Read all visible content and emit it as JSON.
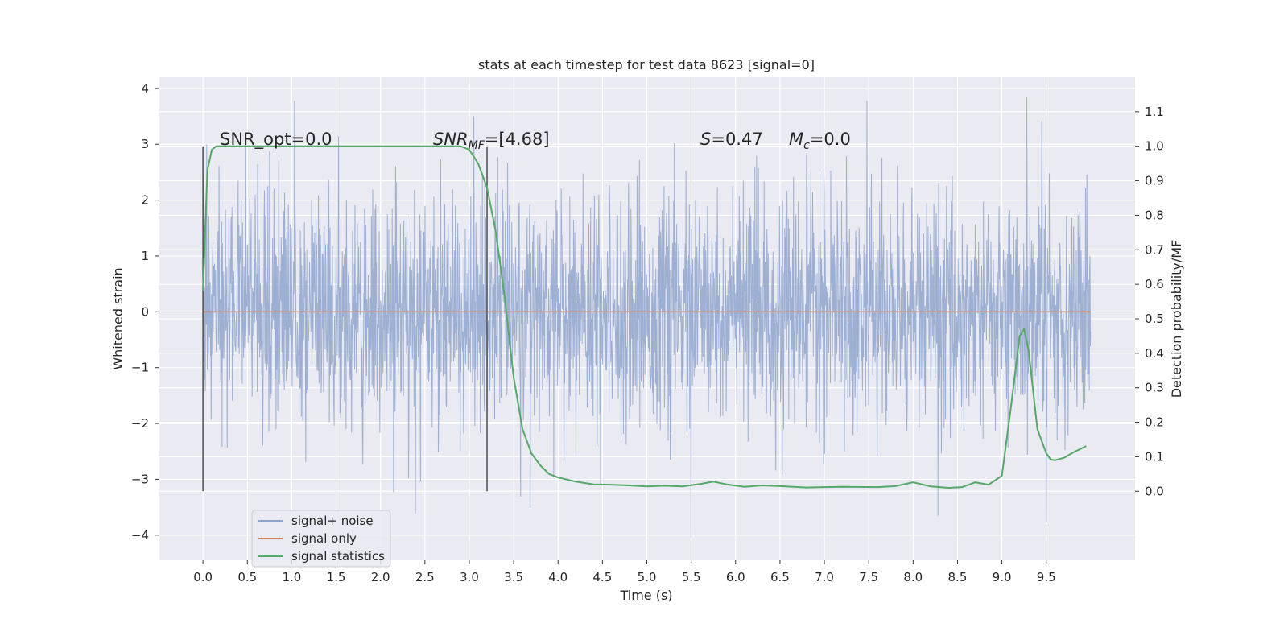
{
  "chart_data": {
    "type": "line",
    "title": "stats at each timestep for test data 8623 [signal=0]",
    "xlabel": "Time (s)",
    "ylabel": "Whitened strain",
    "y2label": "Detection probability/MF",
    "xlim": [
      -0.5,
      10.5
    ],
    "ylim": [
      -4.45,
      4.2
    ],
    "y2lim": [
      -0.2,
      1.2
    ],
    "xticks": [
      "0.0",
      "0.5",
      "1.0",
      "1.5",
      "2.0",
      "2.5",
      "3.0",
      "3.5",
      "4.0",
      "4.5",
      "5.0",
      "5.5",
      "6.0",
      "6.5",
      "7.0",
      "7.5",
      "8.0",
      "8.5",
      "9.0",
      "9.5"
    ],
    "yticks": [
      "4",
      "3",
      "2",
      "1",
      "0",
      "−1",
      "−2",
      "−3",
      "−4"
    ],
    "y2ticks": [
      "1.1",
      "1.0",
      "0.9",
      "0.8",
      "0.7",
      "0.6",
      "0.5",
      "0.4",
      "0.3",
      "0.2",
      "0.1",
      "0.0"
    ],
    "grid": true,
    "legend_position": "lower-left",
    "colors": {
      "background": "#eaeaf2",
      "noise": "#8fa4cd",
      "signal": "#dd8452",
      "statistic": "#55a868",
      "marker": "#4d4d4d"
    },
    "annotations": {
      "snr_opt": "SNR_opt=0.0",
      "snr_mf_main": "SNR",
      "snr_mf_sub": "MF",
      "snr_mf_rest": "=[4.68]",
      "s_italic": "S",
      "s_value": "=0.47",
      "mc_main": "M",
      "mc_sub": "c",
      "mc_value": "=0.0"
    },
    "series": [
      {
        "name": "signal+ noise",
        "kind": "noise",
        "x_range": [
          0.0,
          10.0
        ],
        "y_range": [
          -4.05,
          3.85
        ],
        "std": 1.0,
        "spikes": [
          [
            1.03,
            3.78
          ],
          [
            3.05,
            3.5
          ],
          [
            7.48,
            3.78
          ],
          [
            9.28,
            3.85
          ],
          [
            9.45,
            3.42
          ],
          [
            5.5,
            -4.05
          ],
          [
            8.28,
            -3.65
          ],
          [
            9.5,
            -3.78
          ]
        ]
      },
      {
        "name": "signal only",
        "kind": "line",
        "x": [
          0.0,
          10.0
        ],
        "y": [
          0.0,
          0.0
        ]
      },
      {
        "name": "signal statistics",
        "kind": "line",
        "axis": "right",
        "x": [
          0.0,
          0.05,
          0.1,
          0.15,
          0.3,
          0.5,
          1.0,
          1.5,
          2.0,
          2.5,
          2.9,
          3.0,
          3.1,
          3.2,
          3.3,
          3.4,
          3.5,
          3.6,
          3.7,
          3.8,
          3.9,
          4.0,
          4.2,
          4.4,
          4.6,
          4.8,
          5.0,
          5.2,
          5.4,
          5.6,
          5.75,
          5.9,
          6.1,
          6.3,
          6.5,
          6.8,
          7.2,
          7.6,
          7.8,
          8.0,
          8.2,
          8.4,
          8.55,
          8.7,
          8.85,
          9.0,
          9.1,
          9.2,
          9.25,
          9.3,
          9.4,
          9.5,
          9.55,
          9.6,
          9.7,
          9.8,
          9.95
        ],
        "y": [
          0.58,
          0.93,
          0.99,
          1.0,
          1.0,
          1.0,
          1.0,
          1.0,
          1.0,
          1.0,
          1.0,
          0.99,
          0.95,
          0.88,
          0.75,
          0.56,
          0.33,
          0.18,
          0.11,
          0.075,
          0.05,
          0.04,
          0.028,
          0.02,
          0.019,
          0.017,
          0.014,
          0.016,
          0.014,
          0.021,
          0.028,
          0.02,
          0.013,
          0.017,
          0.015,
          0.011,
          0.013,
          0.012,
          0.015,
          0.026,
          0.014,
          0.01,
          0.012,
          0.026,
          0.019,
          0.045,
          0.24,
          0.45,
          0.47,
          0.41,
          0.18,
          0.11,
          0.092,
          0.09,
          0.097,
          0.112,
          0.131
        ]
      }
    ],
    "vlines": [
      0.0,
      3.2
    ]
  }
}
